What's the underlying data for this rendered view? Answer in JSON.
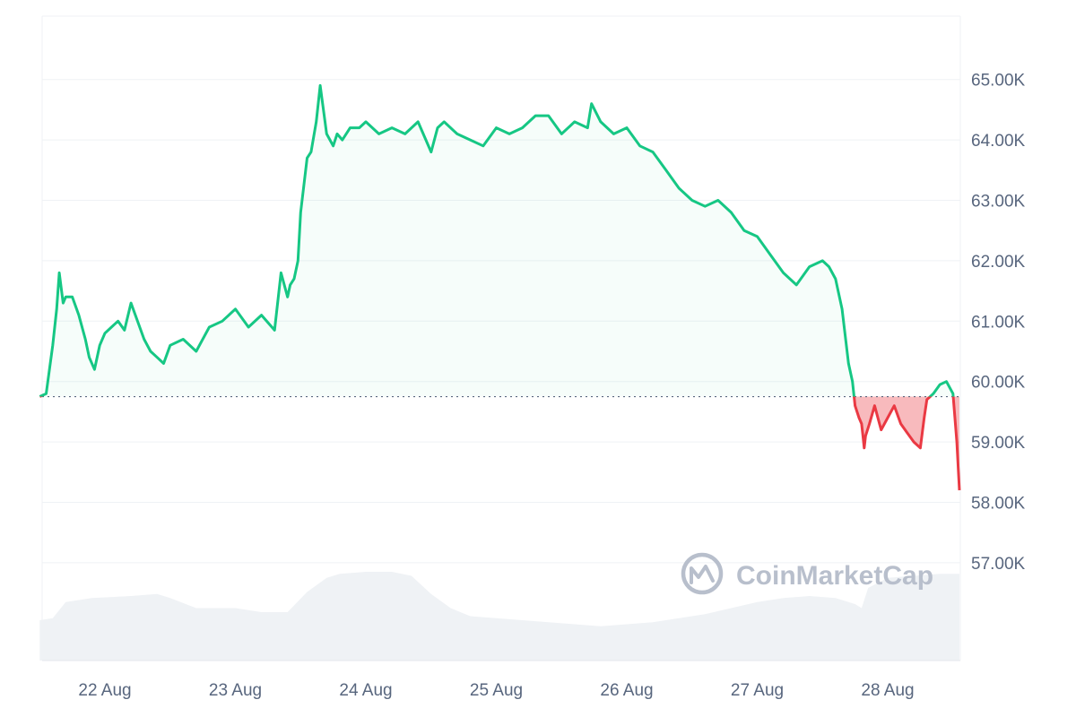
{
  "chart_data": {
    "type": "area",
    "title": "",
    "xlabel": "",
    "ylabel": "",
    "x_ticks": [
      "22 Aug",
      "23 Aug",
      "24 Aug",
      "25 Aug",
      "26 Aug",
      "27 Aug",
      "28 Aug"
    ],
    "y_ticks": [
      "57.00K",
      "58.00K",
      "59.00K",
      "60.00K",
      "61.00K",
      "62.00K",
      "63.00K",
      "64.00K",
      "65.00K"
    ],
    "ylim": [
      56000,
      66000
    ],
    "x_range_days": [
      21.5,
      28.55
    ],
    "baseline": 59750,
    "grid": true,
    "watermark": "CoinMarketCap",
    "colors": {
      "up_line": "#16c784",
      "down_line": "#ea3943",
      "grid": "#eff2f5",
      "axis_text": "#58667e",
      "volume": "#eff2f5",
      "watermark": "#b8bfcc"
    },
    "series": [
      {
        "x": [
          21.5,
          21.55,
          21.6,
          21.63,
          21.65,
          21.68,
          21.7,
          21.75,
          21.8,
          21.85,
          21.88,
          21.92,
          21.96,
          22.0,
          22.05,
          22.1,
          22.15,
          22.2,
          22.3,
          22.35,
          22.4,
          22.45,
          22.5,
          22.6,
          22.7,
          22.8,
          22.9,
          23.0,
          23.1,
          23.2,
          23.3,
          23.35,
          23.4,
          23.42,
          23.45,
          23.48,
          23.5,
          23.55,
          23.58,
          23.62,
          23.65,
          23.7,
          23.75,
          23.78,
          23.82,
          23.88,
          23.95,
          24.0,
          24.1,
          24.2,
          24.3,
          24.4,
          24.5,
          24.55,
          24.6,
          24.7,
          24.8,
          24.9,
          25.0,
          25.1,
          25.2,
          25.3,
          25.4,
          25.5,
          25.6,
          25.7,
          25.73,
          25.8,
          25.9,
          26.0,
          26.1,
          26.2,
          26.3,
          26.4,
          26.5,
          26.6,
          26.7,
          26.8,
          26.9,
          27.0,
          27.1,
          27.2,
          27.3,
          27.4,
          27.5,
          27.55,
          27.6,
          27.65,
          27.7,
          27.73,
          27.75,
          27.78,
          27.8,
          27.81,
          27.82,
          27.83,
          27.86,
          27.9,
          27.95,
          28.0,
          28.05,
          28.1,
          28.15,
          28.2,
          28.25,
          28.28,
          28.3,
          28.35,
          28.4,
          28.45,
          28.5,
          28.53,
          28.55
        ],
        "y": [
          59750,
          59800,
          60600,
          61200,
          61800,
          61300,
          61400,
          61400,
          61100,
          60700,
          60400,
          60200,
          60600,
          60800,
          60900,
          61000,
          60850,
          61300,
          60700,
          60500,
          60400,
          60300,
          60600,
          60700,
          60500,
          60900,
          61000,
          61200,
          60900,
          61100,
          60850,
          61800,
          61400,
          61600,
          61700,
          62000,
          62800,
          63700,
          63800,
          64300,
          64900,
          64100,
          63900,
          64100,
          64000,
          64200,
          64200,
          64300,
          64100,
          64200,
          64100,
          64300,
          63800,
          64200,
          64300,
          64100,
          64000,
          63900,
          64200,
          64100,
          64200,
          64400,
          64400,
          64100,
          64300,
          64200,
          64600,
          64300,
          64100,
          64200,
          63900,
          63800,
          63500,
          63200,
          63000,
          62900,
          63000,
          62800,
          62500,
          62400,
          62100,
          61800,
          61600,
          61900,
          62000,
          61900,
          61700,
          61200,
          60300,
          60000,
          59600,
          59400,
          59300,
          59100,
          58900,
          59100,
          59300,
          59600,
          59200,
          59400,
          59600,
          59300,
          59150,
          59000,
          58900,
          59400,
          59700,
          59800,
          59950,
          60000,
          59800,
          59000,
          58200
        ]
      }
    ],
    "volume": {
      "x": [
        21.5,
        21.6,
        21.7,
        21.9,
        22.2,
        22.4,
        22.5,
        22.7,
        23.0,
        23.2,
        23.4,
        23.55,
        23.7,
        23.8,
        24.0,
        24.2,
        24.35,
        24.5,
        24.65,
        24.8,
        25.0,
        25.2,
        25.4,
        25.6,
        25.8,
        26.0,
        26.2,
        26.4,
        26.6,
        26.8,
        27.0,
        27.2,
        27.4,
        27.6,
        27.75,
        27.8,
        27.85,
        28.0,
        28.2,
        28.4,
        28.55
      ],
      "v": [
        1.0,
        1.05,
        1.45,
        1.55,
        1.6,
        1.65,
        1.55,
        1.3,
        1.3,
        1.2,
        1.2,
        1.7,
        2.05,
        2.15,
        2.2,
        2.2,
        2.1,
        1.65,
        1.3,
        1.1,
        1.05,
        1.0,
        0.95,
        0.9,
        0.85,
        0.9,
        0.95,
        1.05,
        1.15,
        1.3,
        1.45,
        1.55,
        1.6,
        1.55,
        1.4,
        1.3,
        1.8,
        2.05,
        2.1,
        2.15,
        2.15
      ]
    }
  }
}
